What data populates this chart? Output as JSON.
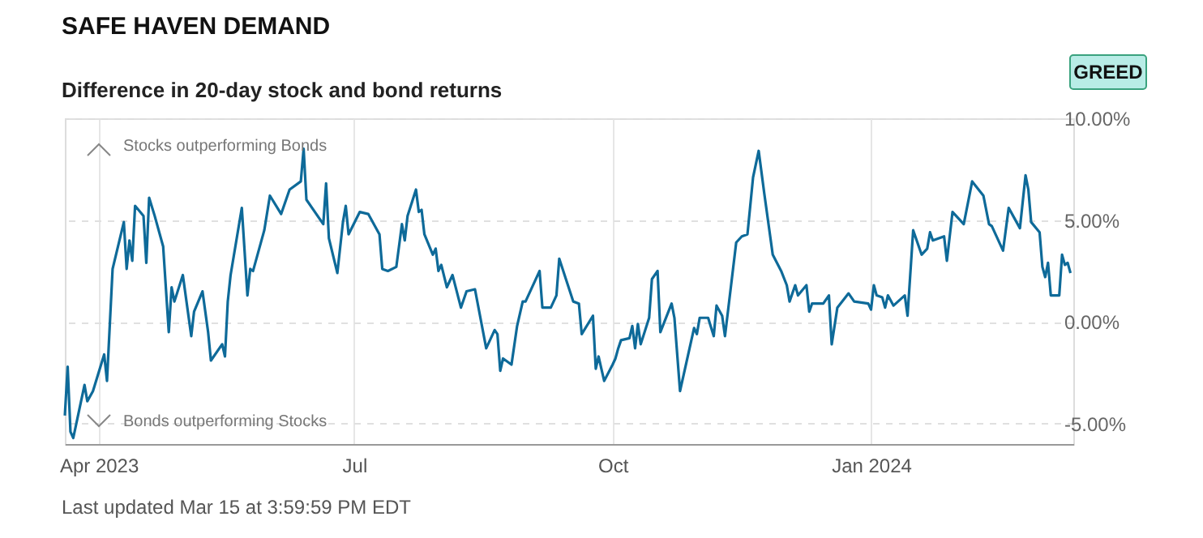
{
  "chart_data": {
    "type": "line",
    "title": "SAFE HAVEN DEMAND",
    "subtitle": "Difference in 20-day stock and bond returns",
    "annotations": [
      "Stocks outperforming Bonds",
      "Bonds outperforming Stocks",
      "GREED",
      "Last updated Mar 15 at 3:59:59 PM EDT"
    ],
    "x": [
      "2023-03-20",
      "2023-03-21",
      "2023-03-22",
      "2023-03-23",
      "2023-03-27",
      "2023-03-28",
      "2023-03-30",
      "2023-04-03",
      "2023-04-04",
      "2023-04-06",
      "2023-04-10",
      "2023-04-11",
      "2023-04-12",
      "2023-04-13",
      "2023-04-14",
      "2023-04-17",
      "2023-04-18",
      "2023-04-19",
      "2023-04-21",
      "2023-04-24",
      "2023-04-26",
      "2023-04-27",
      "2023-04-28",
      "2023-05-01",
      "2023-05-04",
      "2023-05-05",
      "2023-05-08",
      "2023-05-10",
      "2023-05-11",
      "2023-05-15",
      "2023-05-16",
      "2023-05-17",
      "2023-05-18",
      "2023-05-22",
      "2023-05-24",
      "2023-05-25",
      "2023-05-26",
      "2023-05-30",
      "2023-06-01",
      "2023-06-05",
      "2023-06-08",
      "2023-06-12",
      "2023-06-13",
      "2023-06-14",
      "2023-06-20",
      "2023-06-21",
      "2023-06-22",
      "2023-06-25",
      "2023-06-27",
      "2023-06-28",
      "2023-06-29",
      "2023-07-03",
      "2023-07-06",
      "2023-07-10",
      "2023-07-11",
      "2023-07-13",
      "2023-07-16",
      "2023-07-18",
      "2023-07-19",
      "2023-07-20",
      "2023-07-23",
      "2023-07-24",
      "2023-07-25",
      "2023-07-26",
      "2023-07-29",
      "2023-07-30",
      "2023-07-31",
      "2023-08-01",
      "2023-08-03",
      "2023-08-05",
      "2023-08-08",
      "2023-08-10",
      "2023-08-13",
      "2023-08-17",
      "2023-08-20",
      "2023-08-21",
      "2023-08-22",
      "2023-08-23",
      "2023-08-26",
      "2023-08-28",
      "2023-08-30",
      "2023-08-31",
      "2023-09-05",
      "2023-09-06",
      "2023-09-09",
      "2023-09-11",
      "2023-09-12",
      "2023-09-17",
      "2023-09-19",
      "2023-09-20",
      "2023-09-24",
      "2023-09-25",
      "2023-09-26",
      "2023-09-27",
      "2023-09-28",
      "2023-10-01",
      "2023-10-02",
      "2023-10-03",
      "2023-10-04",
      "2023-10-07",
      "2023-10-08",
      "2023-10-09",
      "2023-10-10",
      "2023-10-11",
      "2023-10-14",
      "2023-10-15",
      "2023-10-17",
      "2023-10-18",
      "2023-10-22",
      "2023-10-23",
      "2023-10-25",
      "2023-10-30",
      "2023-10-31",
      "2023-11-01",
      "2023-11-04",
      "2023-11-06",
      "2023-11-07",
      "2023-11-09",
      "2023-11-10",
      "2023-11-14",
      "2023-11-16",
      "2023-11-18",
      "2023-11-20",
      "2023-11-22",
      "2023-11-24",
      "2023-11-27",
      "2023-11-30",
      "2023-12-02",
      "2023-12-03",
      "2023-12-05",
      "2023-12-06",
      "2023-12-09",
      "2023-12-10",
      "2023-12-11",
      "2023-12-15",
      "2023-12-17",
      "2023-12-18",
      "2023-12-20",
      "2023-12-24",
      "2023-12-26",
      "2023-12-31",
      "2024-01-01",
      "2024-01-02",
      "2024-01-03",
      "2024-01-05",
      "2024-01-06",
      "2024-01-07",
      "2024-01-09",
      "2024-01-13",
      "2024-01-14",
      "2024-01-16",
      "2024-01-19",
      "2024-01-21",
      "2024-01-22",
      "2024-01-23",
      "2024-01-27",
      "2024-01-28",
      "2024-01-30",
      "2024-02-03",
      "2024-02-06",
      "2024-02-10",
      "2024-02-12",
      "2024-02-13",
      "2024-02-17",
      "2024-02-19",
      "2024-02-21",
      "2024-02-23",
      "2024-02-25",
      "2024-02-26",
      "2024-02-27",
      "2024-03-01",
      "2024-03-02",
      "2024-03-03",
      "2024-03-04",
      "2024-03-05",
      "2024-03-08",
      "2024-03-09",
      "2024-03-10",
      "2024-03-11",
      "2024-03-12"
    ],
    "series": [
      {
        "color": "#0e6a99",
        "values": [
          -4.6,
          -2.2,
          -5.4,
          -5.7,
          -3.1,
          -3.9,
          -3.4,
          -1.6,
          -2.9,
          2.6,
          4.9,
          2.6,
          4.0,
          3.0,
          5.7,
          5.2,
          2.9,
          6.1,
          5.2,
          3.7,
          -0.5,
          1.7,
          1.0,
          2.3,
          -0.7,
          0.5,
          1.5,
          -0.5,
          -1.9,
          -1.1,
          -1.7,
          1.0,
          2.3,
          5.6,
          1.3,
          2.6,
          2.5,
          4.5,
          6.2,
          5.3,
          6.5,
          6.9,
          8.5,
          6.0,
          4.8,
          6.8,
          4.1,
          2.4,
          4.9,
          5.7,
          4.3,
          5.4,
          5.3,
          4.3,
          2.6,
          2.5,
          2.7,
          4.8,
          4.0,
          5.2,
          6.5,
          5.4,
          5.5,
          4.3,
          3.3,
          3.6,
          2.5,
          2.8,
          1.7,
          2.3,
          0.7,
          1.5,
          1.6,
          -1.3,
          -0.4,
          -0.6,
          -2.4,
          -1.8,
          -2.1,
          -0.2,
          1.0,
          1.0,
          2.5,
          0.7,
          0.7,
          1.3,
          3.1,
          1.0,
          0.9,
          -0.6,
          0.3,
          -2.3,
          -1.7,
          -2.3,
          -2.9,
          -2.1,
          -1.8,
          -1.3,
          -0.9,
          -0.8,
          -0.2,
          -1.3,
          -0.1,
          -1.1,
          0.2,
          2.1,
          2.5,
          -0.5,
          0.9,
          0.2,
          -3.4,
          -0.3,
          -0.6,
          0.2,
          0.2,
          -0.7,
          0.8,
          0.3,
          -0.7,
          3.9,
          4.2,
          4.3,
          7.1,
          8.4,
          6.3,
          3.3,
          2.5,
          1.8,
          1.0,
          1.8,
          1.3,
          1.8,
          0.5,
          0.9,
          0.9,
          1.3,
          -1.1,
          0.7,
          1.4,
          1.0,
          0.9,
          0.6,
          1.8,
          1.3,
          1.2,
          0.7,
          1.3,
          0.8,
          1.3,
          0.3,
          4.5,
          3.3,
          3.6,
          4.4,
          4.0,
          4.2,
          3.0,
          5.4,
          4.8,
          6.9,
          6.2,
          4.8,
          4.7,
          3.5,
          5.6,
          5.1,
          4.6,
          7.2,
          6.5,
          4.9,
          4.4,
          2.7,
          2.2,
          2.9,
          1.3,
          1.3,
          3.3,
          2.8,
          2.9,
          2.4
        ]
      }
    ],
    "xlim": [
      "2023-03-20",
      "2024-03-13"
    ],
    "xticks": [
      {
        "value": "2023-04-01",
        "label": "Apr 2023"
      },
      {
        "value": "2023-07-01",
        "label": "Jul"
      },
      {
        "value": "2023-10-01",
        "label": "Oct"
      },
      {
        "value": "2024-01-01",
        "label": "Jan 2024"
      }
    ],
    "ylim": [
      -6,
      10
    ],
    "yticks": [
      {
        "value": -5,
        "label": "-5.00%"
      },
      {
        "value": 0,
        "label": "0.00%"
      },
      {
        "value": 5,
        "label": "5.00%"
      },
      {
        "value": 10,
        "label": "10.00%"
      }
    ],
    "grid": true,
    "line_style": "solid",
    "marker": "none"
  }
}
